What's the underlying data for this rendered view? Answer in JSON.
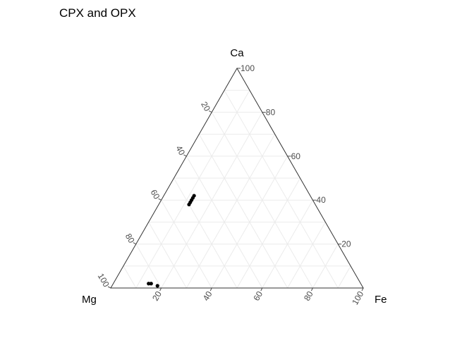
{
  "chart_data": {
    "type": "ternary-scatter",
    "title": "CPX and OPX",
    "axes": {
      "top": "Ca",
      "left": "Mg",
      "right": "Fe"
    },
    "range": [
      0,
      100
    ],
    "grid": true,
    "tick_values": [
      20,
      40,
      60,
      80,
      100
    ],
    "tick_labels": [
      "20",
      "40",
      "60",
      "80",
      "100"
    ],
    "colors": {
      "grid": "#ebebeb",
      "frame": "#333333",
      "points": "#000000",
      "ticks": "#4d4d4d"
    },
    "points": [
      {
        "Ca": 42,
        "Mg": 46,
        "Fe": 12
      },
      {
        "Ca": 41,
        "Mg": 47,
        "Fe": 12
      },
      {
        "Ca": 40,
        "Mg": 48,
        "Fe": 12
      },
      {
        "Ca": 39,
        "Mg": 49,
        "Fe": 12
      },
      {
        "Ca": 38,
        "Mg": 50,
        "Fe": 12
      },
      {
        "Ca": 2,
        "Mg": 84,
        "Fe": 14
      },
      {
        "Ca": 2,
        "Mg": 83,
        "Fe": 15
      },
      {
        "Ca": 1,
        "Mg": 81,
        "Fe": 18
      }
    ]
  }
}
